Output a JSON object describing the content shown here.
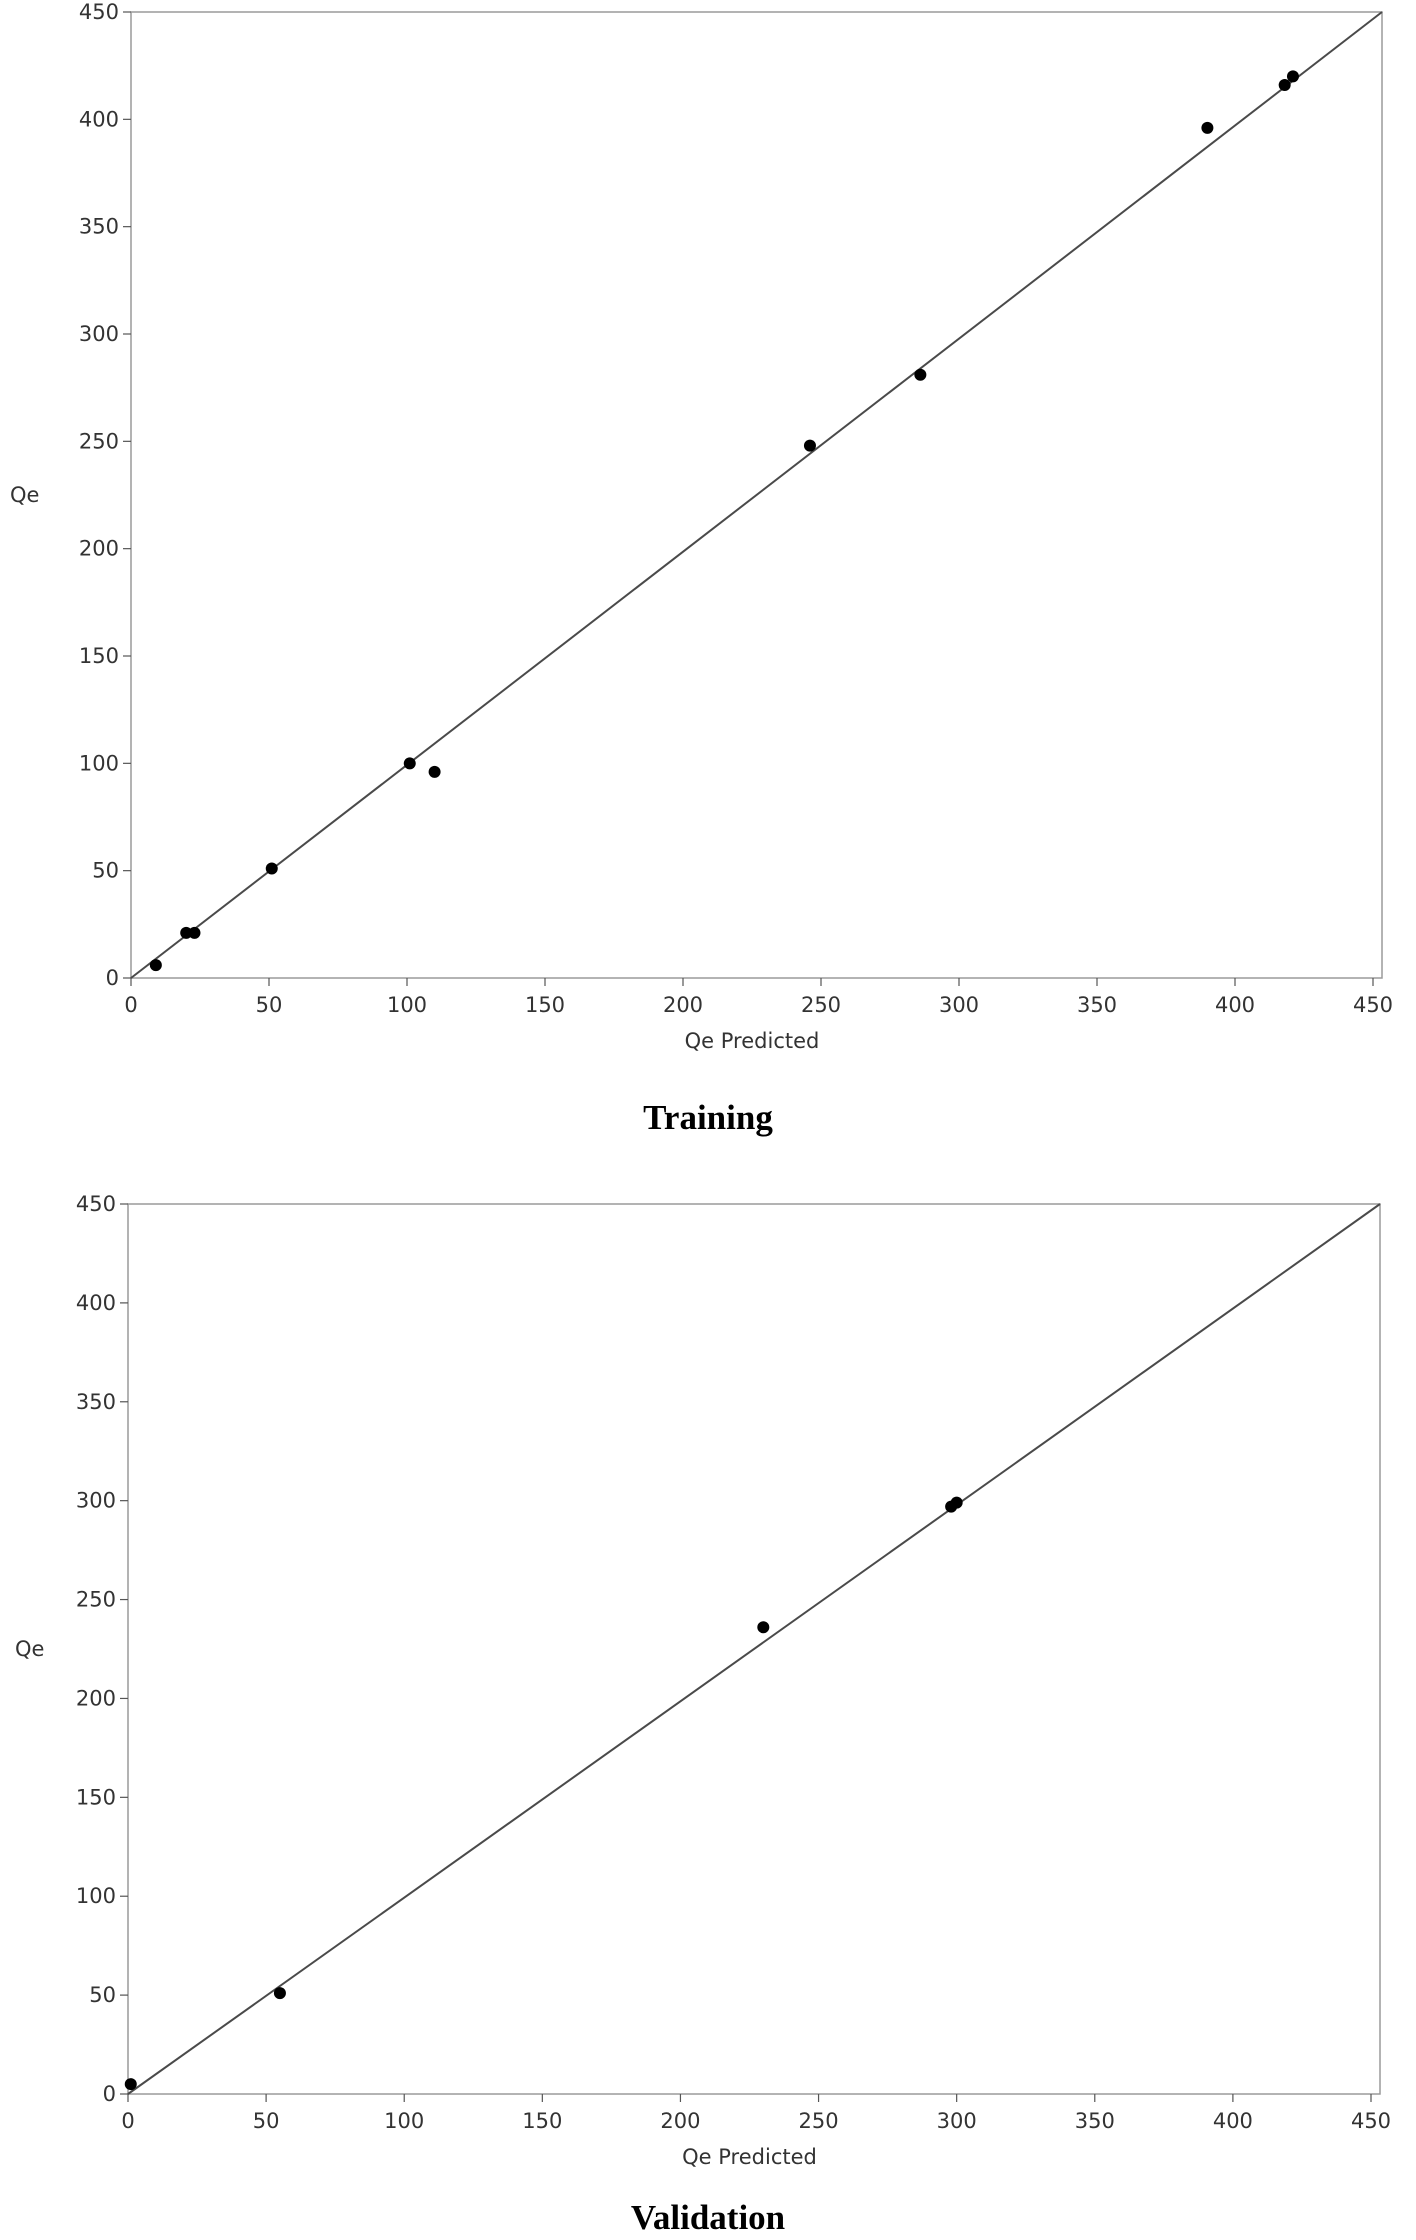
{
  "chart_data": [
    {
      "type": "scatter",
      "caption": "Training",
      "xlabel": "Qe Predicted",
      "ylabel": "Qe",
      "xlim": [
        0,
        450
      ],
      "ylim": [
        0,
        450
      ],
      "x_ticks": [
        "0",
        "50",
        "100",
        "150",
        "200",
        "250",
        "300",
        "350",
        "400",
        "450"
      ],
      "y_ticks": [
        "0",
        "50",
        "100",
        "150",
        "200",
        "250",
        "300",
        "350",
        "400",
        "450"
      ],
      "reference_line": "y = x",
      "grid": false,
      "points": [
        {
          "x": 9,
          "y": 6
        },
        {
          "x": 20,
          "y": 21
        },
        {
          "x": 23,
          "y": 21
        },
        {
          "x": 51,
          "y": 51
        },
        {
          "x": 101,
          "y": 100
        },
        {
          "x": 110,
          "y": 96
        },
        {
          "x": 246,
          "y": 248
        },
        {
          "x": 286,
          "y": 281
        },
        {
          "x": 390,
          "y": 396
        },
        {
          "x": 418,
          "y": 416
        },
        {
          "x": 421,
          "y": 420
        }
      ]
    },
    {
      "type": "scatter",
      "caption": "Validation",
      "xlabel": "Qe Predicted",
      "ylabel": "Qe",
      "xlim": [
        0,
        450
      ],
      "ylim": [
        0,
        450
      ],
      "x_ticks": [
        "0",
        "50",
        "100",
        "150",
        "200",
        "250",
        "300",
        "350",
        "400",
        "450"
      ],
      "y_ticks": [
        "0",
        "50",
        "100",
        "150",
        "200",
        "250",
        "300",
        "350",
        "400",
        "450"
      ],
      "reference_line": "y = x",
      "grid": false,
      "points": [
        {
          "x": 1,
          "y": 5
        },
        {
          "x": 55,
          "y": 51
        },
        {
          "x": 230,
          "y": 236
        },
        {
          "x": 298,
          "y": 297
        },
        {
          "x": 300,
          "y": 299
        }
      ]
    }
  ]
}
